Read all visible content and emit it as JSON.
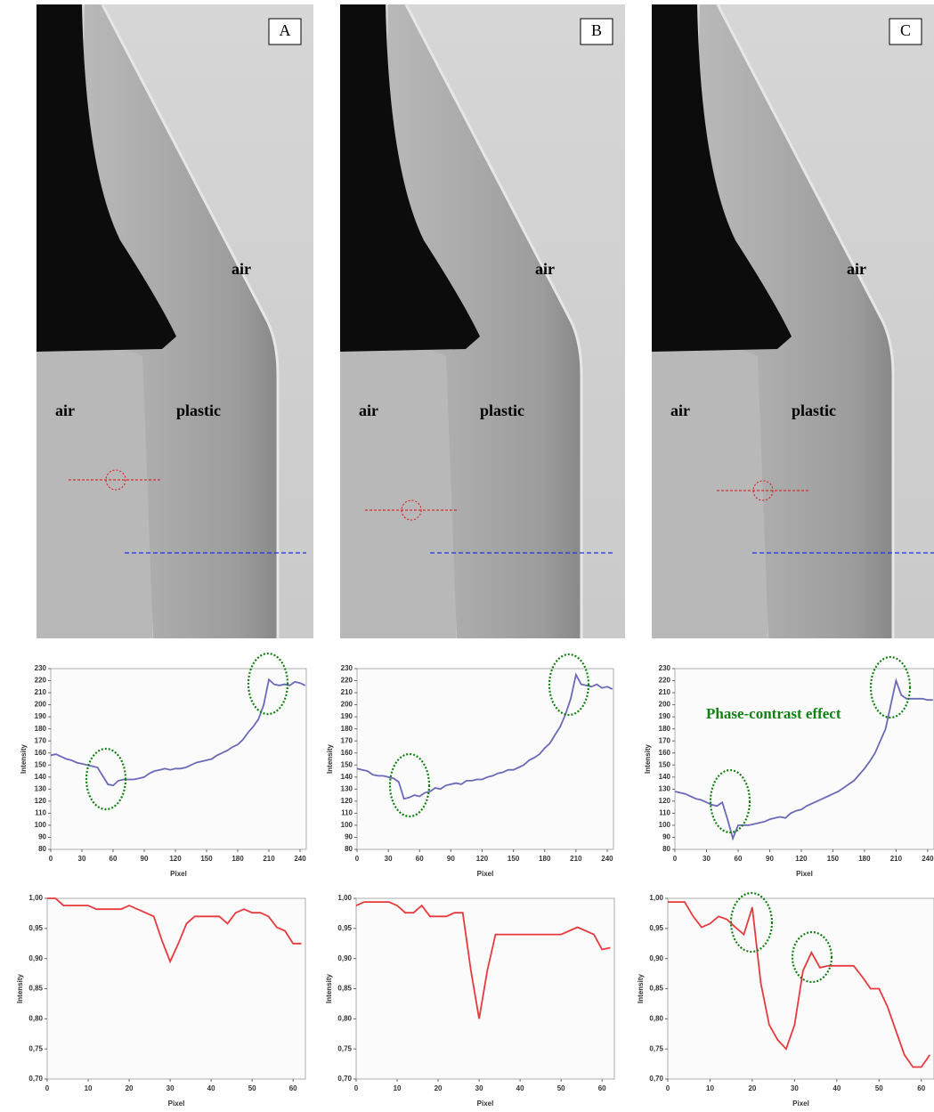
{
  "panels": [
    {
      "label": "A",
      "air_top": "air",
      "air_left": "air",
      "plastic": "plastic"
    },
    {
      "label": "B",
      "air_top": "air",
      "air_left": "air",
      "plastic": "plastic"
    },
    {
      "label": "C",
      "air_top": "air",
      "air_left": "air",
      "plastic": "plastic"
    }
  ],
  "chart_data": [
    {
      "type": "line",
      "color": "#6a6ab8",
      "ylabel": "Intensity",
      "xlabel": "Pixel",
      "x": [
        0,
        5,
        10,
        15,
        20,
        25,
        30,
        35,
        40,
        45,
        50,
        55,
        60,
        65,
        70,
        75,
        80,
        85,
        90,
        95,
        100,
        105,
        110,
        115,
        120,
        125,
        130,
        135,
        140,
        145,
        150,
        155,
        160,
        165,
        170,
        175,
        180,
        185,
        190,
        195,
        200,
        205,
        210,
        215,
        220,
        225,
        230,
        235,
        240,
        245
      ],
      "values": [
        158,
        159,
        157,
        155,
        154,
        152,
        151,
        150,
        149,
        148,
        141,
        134,
        133,
        137,
        138,
        138,
        138,
        139,
        140,
        143,
        145,
        146,
        147,
        146,
        147,
        147,
        148,
        150,
        152,
        153,
        154,
        155,
        158,
        160,
        162,
        165,
        167,
        171,
        177,
        182,
        188,
        200,
        221,
        217,
        216,
        217,
        216,
        219,
        218,
        216
      ],
      "xlim": [
        0,
        246
      ],
      "ylim": [
        80,
        230
      ],
      "xticks": [
        0,
        30,
        60,
        90,
        120,
        150,
        180,
        210,
        240
      ],
      "yticks": [
        80,
        90,
        100,
        110,
        120,
        130,
        140,
        150,
        160,
        170,
        180,
        190,
        200,
        210,
        220,
        230
      ],
      "grid": false
    },
    {
      "type": "line",
      "color": "#6a6ab8",
      "ylabel": "Intensity",
      "xlabel": "Pixel",
      "x": [
        0,
        5,
        10,
        15,
        20,
        25,
        30,
        35,
        40,
        45,
        50,
        55,
        60,
        65,
        70,
        75,
        80,
        85,
        90,
        95,
        100,
        105,
        110,
        115,
        120,
        125,
        130,
        135,
        140,
        145,
        150,
        155,
        160,
        165,
        170,
        175,
        180,
        185,
        190,
        195,
        200,
        205,
        210,
        215,
        220,
        225,
        230,
        235,
        240,
        245
      ],
      "values": [
        147,
        146,
        145,
        142,
        141,
        141,
        140,
        139,
        136,
        122,
        123,
        125,
        124,
        127,
        128,
        131,
        130,
        133,
        134,
        135,
        134,
        137,
        137,
        138,
        138,
        140,
        141,
        143,
        144,
        146,
        146,
        148,
        150,
        154,
        156,
        159,
        164,
        168,
        175,
        182,
        192,
        205,
        225,
        217,
        216,
        215,
        217,
        214,
        215,
        213
      ],
      "xlim": [
        0,
        246
      ],
      "ylim": [
        80,
        230
      ],
      "xticks": [
        0,
        30,
        60,
        90,
        120,
        150,
        180,
        210,
        240
      ],
      "yticks": [
        80,
        90,
        100,
        110,
        120,
        130,
        140,
        150,
        160,
        170,
        180,
        190,
        200,
        210,
        220,
        230
      ],
      "grid": false
    },
    {
      "type": "line",
      "color": "#6a6ab8",
      "ylabel": "Intensity",
      "xlabel": "Pixel",
      "annotation": "Phase-contrast effect",
      "x": [
        0,
        5,
        10,
        15,
        20,
        25,
        30,
        35,
        40,
        45,
        50,
        55,
        60,
        65,
        70,
        75,
        80,
        85,
        90,
        95,
        100,
        105,
        110,
        115,
        120,
        125,
        130,
        135,
        140,
        145,
        150,
        155,
        160,
        165,
        170,
        175,
        180,
        185,
        190,
        195,
        200,
        205,
        210,
        215,
        220,
        225,
        230,
        235,
        240,
        245
      ],
      "values": [
        128,
        127,
        126,
        124,
        122,
        121,
        119,
        117,
        116,
        119,
        105,
        89,
        100,
        100,
        100,
        101,
        102,
        103,
        105,
        106,
        107,
        106,
        110,
        112,
        113,
        116,
        118,
        120,
        122,
        124,
        126,
        128,
        131,
        134,
        137,
        142,
        147,
        153,
        160,
        170,
        180,
        200,
        220,
        208,
        205,
        205,
        205,
        205,
        204,
        204
      ],
      "xlim": [
        0,
        246
      ],
      "ylim": [
        80,
        230
      ],
      "xticks": [
        0,
        30,
        60,
        90,
        120,
        150,
        180,
        210,
        240
      ],
      "yticks": [
        80,
        90,
        100,
        110,
        120,
        130,
        140,
        150,
        160,
        170,
        180,
        190,
        200,
        210,
        220,
        230
      ],
      "grid": false
    },
    {
      "type": "line",
      "color": "#e8393e",
      "ylabel": "Intensity",
      "xlabel": "Pixel",
      "x": [
        0,
        2,
        4,
        6,
        8,
        10,
        12,
        14,
        16,
        18,
        20,
        22,
        24,
        26,
        28,
        30,
        32,
        34,
        36,
        38,
        40,
        42,
        44,
        46,
        48,
        50,
        52,
        54,
        56,
        58,
        60,
        62
      ],
      "values": [
        1.0,
        1.0,
        0.988,
        0.988,
        0.988,
        0.988,
        0.982,
        0.982,
        0.982,
        0.982,
        0.988,
        0.982,
        0.976,
        0.97,
        0.93,
        0.895,
        0.925,
        0.958,
        0.97,
        0.97,
        0.97,
        0.97,
        0.958,
        0.976,
        0.982,
        0.976,
        0.976,
        0.97,
        0.952,
        0.946,
        0.925,
        0.925
      ],
      "xlim": [
        0,
        63
      ],
      "ylim": [
        0.7,
        1.0
      ],
      "xticks": [
        0,
        10,
        20,
        30,
        40,
        50,
        60
      ],
      "yticks": [
        {
          "value": 0.7,
          "label": "0,70"
        },
        {
          "value": 0.75,
          "label": "0,75"
        },
        {
          "value": 0.8,
          "label": "0,80"
        },
        {
          "value": 0.85,
          "label": "0,85"
        },
        {
          "value": 0.9,
          "label": "0,90"
        },
        {
          "value": 0.95,
          "label": "0,95"
        },
        {
          "value": 1.0,
          "label": "1,00"
        }
      ],
      "grid": false
    },
    {
      "type": "line",
      "color": "#e8393e",
      "ylabel": "Intensity",
      "xlabel": "Pixel",
      "x": [
        0,
        2,
        4,
        6,
        8,
        10,
        12,
        14,
        16,
        18,
        20,
        22,
        24,
        26,
        28,
        30,
        32,
        34,
        36,
        38,
        40,
        42,
        44,
        46,
        48,
        50,
        52,
        54,
        56,
        58,
        60,
        62
      ],
      "values": [
        0.988,
        0.994,
        0.994,
        0.994,
        0.994,
        0.988,
        0.976,
        0.976,
        0.988,
        0.97,
        0.97,
        0.97,
        0.976,
        0.976,
        0.88,
        0.8,
        0.88,
        0.94,
        0.94,
        0.94,
        0.94,
        0.94,
        0.94,
        0.94,
        0.94,
        0.94,
        0.946,
        0.952,
        0.946,
        0.94,
        0.915,
        0.918
      ],
      "xlim": [
        0,
        63
      ],
      "ylim": [
        0.7,
        1.0
      ],
      "xticks": [
        0,
        10,
        20,
        30,
        40,
        50,
        60
      ],
      "yticks": [
        {
          "value": 0.7,
          "label": "0,70"
        },
        {
          "value": 0.75,
          "label": "0,75"
        },
        {
          "value": 0.8,
          "label": "0,80"
        },
        {
          "value": 0.85,
          "label": "0,85"
        },
        {
          "value": 0.9,
          "label": "0,90"
        },
        {
          "value": 0.95,
          "label": "0,95"
        },
        {
          "value": 1.0,
          "label": "1,00"
        }
      ],
      "grid": false
    },
    {
      "type": "line",
      "color": "#e8393e",
      "ylabel": "Intensity",
      "xlabel": "Pixel",
      "x": [
        0,
        2,
        4,
        6,
        8,
        10,
        12,
        14,
        16,
        18,
        20,
        22,
        24,
        26,
        28,
        30,
        32,
        34,
        36,
        38,
        40,
        42,
        44,
        46,
        48,
        50,
        52,
        54,
        56,
        58,
        60,
        62
      ],
      "values": [
        0.994,
        0.994,
        0.994,
        0.97,
        0.952,
        0.958,
        0.97,
        0.965,
        0.952,
        0.94,
        0.985,
        0.86,
        0.79,
        0.765,
        0.75,
        0.79,
        0.88,
        0.91,
        0.885,
        0.888,
        0.888,
        0.888,
        0.888,
        0.87,
        0.85,
        0.85,
        0.82,
        0.78,
        0.74,
        0.72,
        0.72,
        0.74
      ],
      "xlim": [
        0,
        63
      ],
      "ylim": [
        0.7,
        1.0
      ],
      "xticks": [
        0,
        10,
        20,
        30,
        40,
        50,
        60
      ],
      "yticks": [
        {
          "value": 0.7,
          "label": "0,70"
        },
        {
          "value": 0.75,
          "label": "0,75"
        },
        {
          "value": 0.8,
          "label": "0,80"
        },
        {
          "value": 0.85,
          "label": "0,85"
        },
        {
          "value": 0.9,
          "label": "0,90"
        },
        {
          "value": 0.95,
          "label": "0,95"
        },
        {
          "value": 1.0,
          "label": "1,00"
        }
      ],
      "grid": false
    }
  ]
}
